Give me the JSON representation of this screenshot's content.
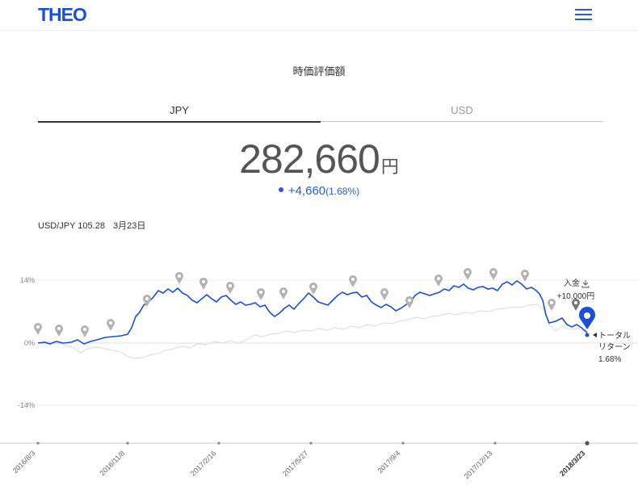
{
  "header": {
    "logo": "THEO",
    "menu_icon": "hamburger-menu-icon"
  },
  "page_title": "時価評価額",
  "tabs": [
    {
      "label": "JPY",
      "active": true
    },
    {
      "label": "USD",
      "active": false
    }
  ],
  "valuation": {
    "amount": "282,660",
    "unit": "円",
    "change": "+4,660",
    "change_pct": "(1.68%)"
  },
  "rate": {
    "label": "USD/JPY 105.28",
    "date": "3月23日"
  },
  "chart_data": {
    "type": "line",
    "y_ticks": [
      "14%",
      "0%",
      "-14%"
    ],
    "x_labels": [
      "2016/8/3",
      "2016/11/8",
      "2017/2/16",
      "2017/5/27",
      "2017/9/4",
      "2017/12/13",
      "2018/3/23"
    ],
    "current_x_label": "2018/3/23",
    "deposit_label": "入金",
    "deposit_amount": "+10,000円",
    "total_return_label_1": "トータル",
    "total_return_label_2": "リターン",
    "total_return_value": "1.68%",
    "colors": {
      "portfolio": "#1a4fd6",
      "benchmark": "#dedede",
      "marker": "#aaaaaa"
    }
  }
}
